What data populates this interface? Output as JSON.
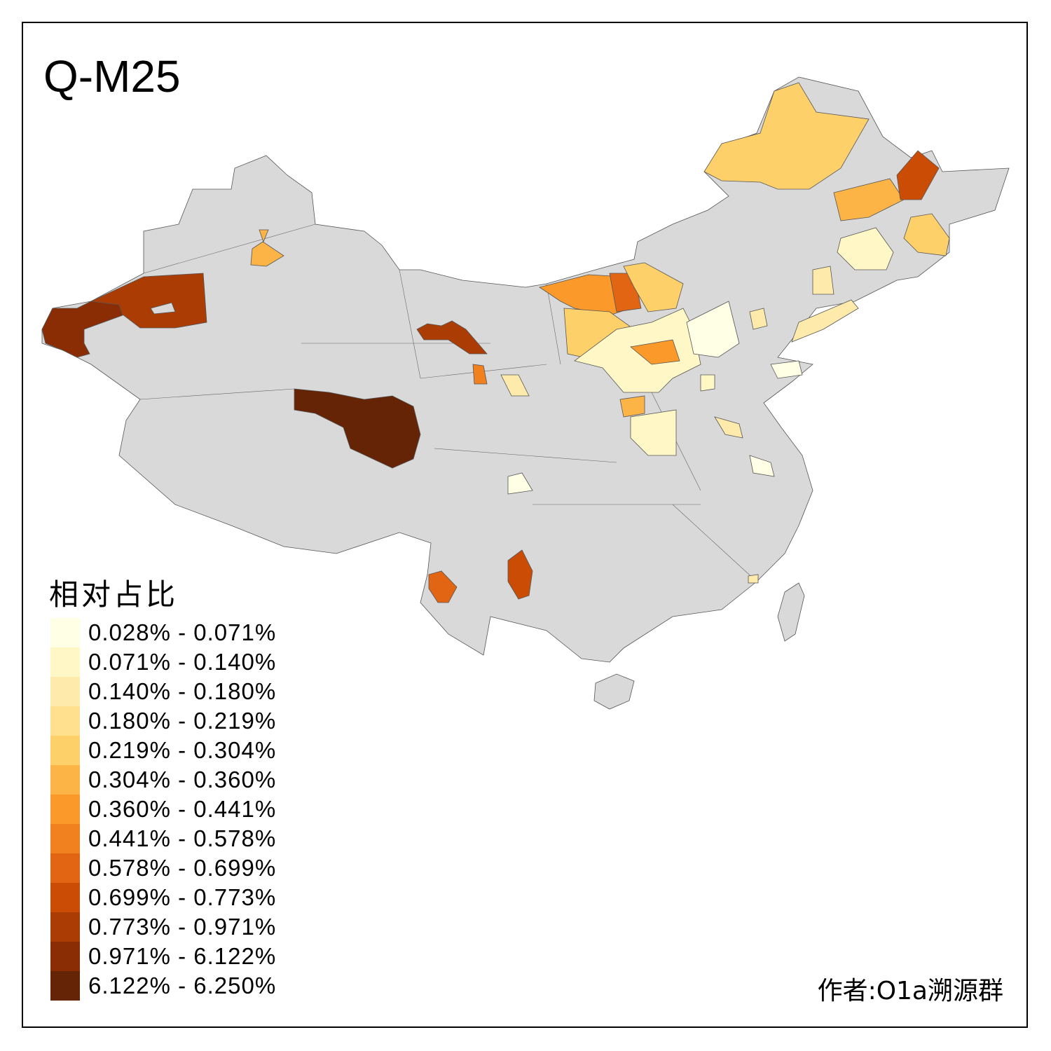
{
  "title": "Q-M25",
  "legend": {
    "title": "相对占比",
    "items": [
      {
        "label": "0.028% - 0.071%",
        "color": "#FFFFE5"
      },
      {
        "label": "0.071% - 0.140%",
        "color": "#FFF7C5"
      },
      {
        "label": "0.140% - 0.180%",
        "color": "#FEEBAB"
      },
      {
        "label": "0.180% - 0.219%",
        "color": "#FEE08E"
      },
      {
        "label": "0.219% - 0.304%",
        "color": "#FED06A"
      },
      {
        "label": "0.304% - 0.360%",
        "color": "#FDB446"
      },
      {
        "label": "0.360% - 0.441%",
        "color": "#FB9A2A"
      },
      {
        "label": "0.441% - 0.578%",
        "color": "#F1801F"
      },
      {
        "label": "0.578% - 0.699%",
        "color": "#E26513"
      },
      {
        "label": "0.699% - 0.773%",
        "color": "#CB4C05"
      },
      {
        "label": "0.773% - 0.971%",
        "color": "#AB3D04"
      },
      {
        "label": "0.971% - 6.122%",
        "color": "#8A2D04"
      },
      {
        "label": "6.122% - 6.250%",
        "color": "#662406"
      }
    ]
  },
  "colors": {
    "no_data": "#D9D9D9",
    "border": "#555555"
  },
  "author": "作者:O1a溯源群"
}
